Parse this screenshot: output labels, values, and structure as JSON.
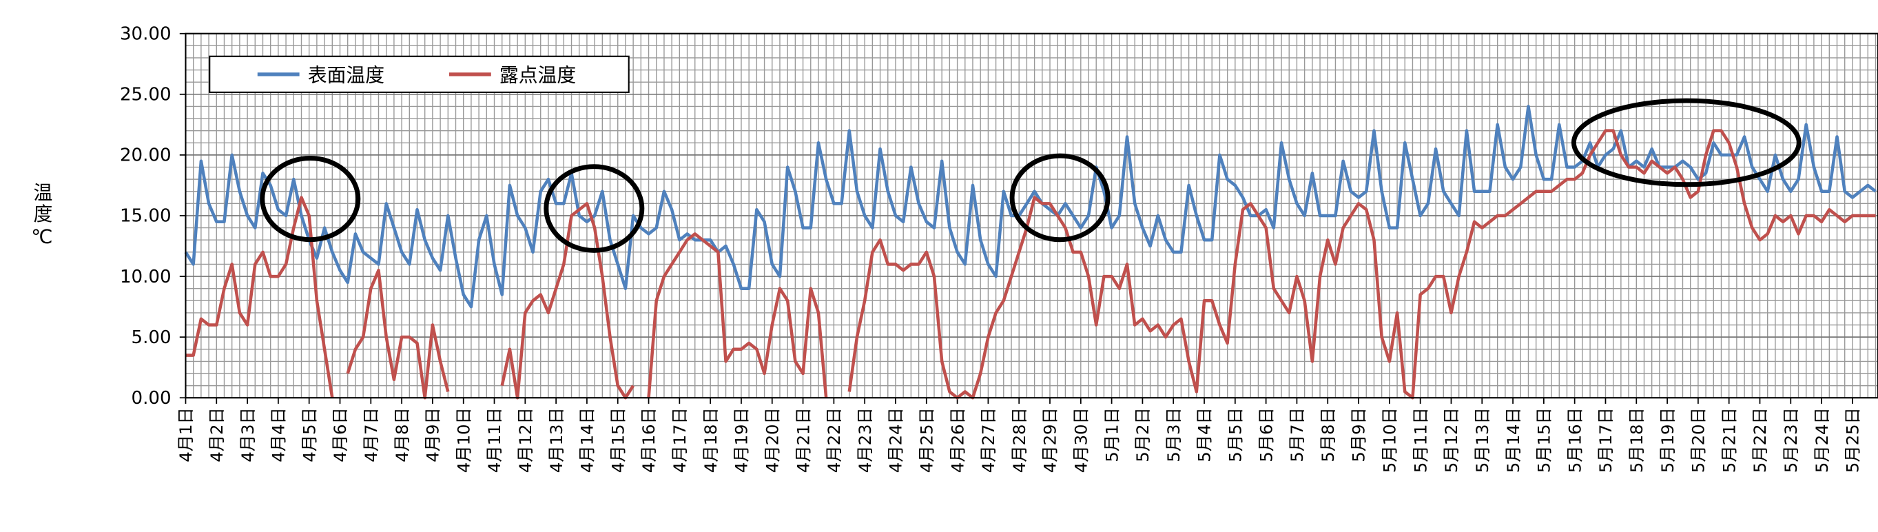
{
  "chart_data": {
    "type": "line",
    "y_label": "温度℃",
    "legend": "upper left",
    "grid": true,
    "ylim": [
      0,
      30
    ],
    "yticks": [
      {
        "value": 0,
        "label": "0.00"
      },
      {
        "value": 5,
        "label": "5.00"
      },
      {
        "value": 10,
        "label": "10.00"
      },
      {
        "value": 15,
        "label": "15.00"
      },
      {
        "value": 20,
        "label": "20.00"
      },
      {
        "value": 25,
        "label": "25.00"
      },
      {
        "value": 30,
        "label": "30.00"
      }
    ],
    "categories": [
      "4月1日",
      null,
      null,
      null,
      "4月2日",
      null,
      null,
      null,
      "4月3日",
      null,
      null,
      null,
      "4月4日",
      null,
      null,
      null,
      "4月5日",
      null,
      null,
      null,
      "4月6日",
      null,
      null,
      null,
      "4月7日",
      null,
      null,
      null,
      "4月8日",
      null,
      null,
      null,
      "4月9日",
      null,
      null,
      null,
      "4月10日",
      null,
      null,
      null,
      "4月11日",
      null,
      null,
      null,
      "4月12日",
      null,
      null,
      null,
      "4月13日",
      null,
      null,
      null,
      "4月14日",
      null,
      null,
      null,
      "4月15日",
      null,
      null,
      null,
      "4月16日",
      null,
      null,
      null,
      "4月17日",
      null,
      null,
      null,
      "4月18日",
      null,
      null,
      null,
      "4月19日",
      null,
      null,
      null,
      "4月20日",
      null,
      null,
      null,
      "4月21日",
      null,
      null,
      null,
      "4月22日",
      null,
      null,
      null,
      "4月23日",
      null,
      null,
      null,
      "4月24日",
      null,
      null,
      null,
      "4月25日",
      null,
      null,
      null,
      "4月26日",
      null,
      null,
      null,
      "4月27日",
      null,
      null,
      null,
      "4月28日",
      null,
      null,
      null,
      "4月29日",
      null,
      null,
      null,
      "4月30日",
      null,
      null,
      null,
      "5月1日",
      null,
      null,
      null,
      "5月2日",
      null,
      null,
      null,
      "5月3日",
      null,
      null,
      null,
      "5月4日",
      null,
      null,
      null,
      "5月5日",
      null,
      null,
      null,
      "5月6日",
      null,
      null,
      null,
      "5月7日",
      null,
      null,
      null,
      "5月8日",
      null,
      null,
      null,
      "5月9日",
      null,
      null,
      null,
      "5月10日",
      null,
      null,
      null,
      "5月11日",
      null,
      null,
      null,
      "5月12日",
      null,
      null,
      null,
      "5月13日",
      null,
      null,
      null,
      "5月14日",
      null,
      null,
      null,
      "5月15日",
      null,
      null,
      null,
      "5月16日",
      null,
      null,
      null,
      "5月17日",
      null,
      null,
      null,
      "5月18日",
      null,
      null,
      null,
      "5月19日",
      null,
      null,
      null,
      "5月20日",
      null,
      null,
      null,
      "5月21日",
      null,
      null,
      null,
      "5月22日",
      null,
      null,
      null,
      "5月23日",
      null,
      null,
      null,
      "5月24日",
      null,
      null,
      null,
      "5月25日",
      null,
      null,
      null
    ],
    "series": [
      {
        "name": "表面温度",
        "color": "#4f81bd",
        "values": [
          12,
          11,
          19.5,
          16,
          14.5,
          14.5,
          20,
          17,
          15,
          14,
          18.5,
          17.5,
          15.5,
          15,
          18,
          15,
          13,
          11.5,
          14,
          12,
          10.5,
          9.5,
          13.5,
          12,
          11.5,
          11,
          16,
          14,
          12,
          11,
          15.5,
          13,
          11.5,
          10.5,
          15,
          11.5,
          8.5,
          7.5,
          13,
          15,
          11,
          8.5,
          17.5,
          15,
          14,
          12,
          17,
          18,
          16,
          16,
          18.5,
          15,
          14.5,
          15,
          17,
          13,
          11,
          9,
          15,
          14,
          13.5,
          14,
          17,
          15.5,
          13,
          13.5,
          13,
          13,
          13,
          12,
          12.5,
          11,
          9,
          9,
          15.5,
          14.5,
          11,
          10,
          19,
          17,
          14,
          14,
          21,
          18,
          16,
          16,
          22,
          17,
          15,
          14,
          20.5,
          17,
          15,
          14.5,
          19,
          16,
          14.5,
          14,
          19.5,
          14,
          12,
          11,
          17.5,
          13,
          11,
          10,
          17,
          15,
          15,
          16,
          17,
          16,
          15.5,
          15,
          16,
          15,
          14,
          15,
          19,
          17,
          14,
          15,
          21.5,
          16,
          14,
          12.5,
          15,
          13,
          12,
          12,
          17.5,
          15,
          13,
          13,
          20,
          18,
          17.5,
          16.5,
          15,
          15,
          15.5,
          14,
          21,
          18,
          16,
          15,
          18.5,
          15,
          15,
          15,
          19.5,
          17,
          16.5,
          17,
          22,
          17,
          14,
          14,
          21,
          18,
          15,
          16,
          20.5,
          17,
          16,
          15,
          22,
          17,
          17,
          17,
          22.5,
          19,
          18,
          19,
          24,
          20,
          18,
          18,
          22.5,
          19,
          19,
          19.5,
          21,
          19,
          20,
          20.5,
          22,
          19,
          19.5,
          19,
          20.5,
          19,
          19,
          19,
          19.5,
          19,
          18,
          18.5,
          21,
          20,
          20,
          20,
          21.5,
          19,
          18,
          17,
          20,
          18,
          17,
          18,
          22.5,
          19,
          17,
          17,
          21.5,
          17,
          16.5,
          17,
          17.5,
          17
        ]
      },
      {
        "name": "露点温度",
        "color": "#c0504d",
        "values": [
          3.5,
          3.5,
          6.5,
          6,
          6,
          9,
          11,
          7,
          6,
          11,
          12,
          10,
          10,
          11,
          14,
          16.5,
          15,
          8,
          4,
          0,
          null,
          2,
          4,
          5,
          9,
          10.5,
          5,
          1.5,
          5,
          5,
          4.5,
          0,
          6,
          3,
          0.5,
          null,
          null,
          null,
          null,
          0.5,
          null,
          1,
          4,
          0,
          7,
          8,
          8.5,
          7,
          9,
          11,
          15,
          15.5,
          16,
          14,
          10,
          5,
          1,
          0,
          1,
          null,
          0,
          8,
          10,
          11,
          12,
          13,
          13.5,
          13,
          12.5,
          12,
          3,
          4,
          4,
          4.5,
          4,
          2,
          6,
          9,
          8,
          3,
          2,
          9,
          7,
          0,
          null,
          null,
          0.5,
          5,
          8,
          12,
          13,
          11,
          11,
          10.5,
          11,
          11,
          12,
          10,
          3,
          0.5,
          0,
          0.5,
          0,
          2,
          5,
          7,
          8,
          10,
          12,
          14,
          16.5,
          16,
          16,
          15,
          14,
          12,
          12,
          10,
          6,
          10,
          10,
          9,
          11,
          6,
          6.5,
          5.5,
          6,
          5,
          6,
          6.5,
          3,
          0.5,
          8,
          8,
          6,
          4.5,
          11,
          15.5,
          16,
          15,
          14,
          9,
          8,
          7,
          10,
          8,
          3,
          10,
          13,
          11,
          14,
          15,
          16,
          15.5,
          13,
          5,
          3,
          7,
          0.5,
          0,
          8.5,
          9,
          10,
          10,
          7,
          10,
          12,
          14.5,
          14,
          14.5,
          15,
          15,
          15.5,
          16,
          16.5,
          17,
          17,
          17,
          17.5,
          18,
          18,
          18.5,
          20,
          21,
          22,
          22,
          20,
          19,
          19,
          18.5,
          19.5,
          19,
          18.5,
          19,
          18,
          16.5,
          17,
          20,
          22,
          22,
          21,
          19,
          16,
          14,
          13,
          13.5,
          15,
          14.5,
          15,
          13.5,
          15,
          15,
          14.5,
          15.5,
          15,
          14.5,
          15,
          15,
          15,
          15
        ]
      }
    ]
  }
}
